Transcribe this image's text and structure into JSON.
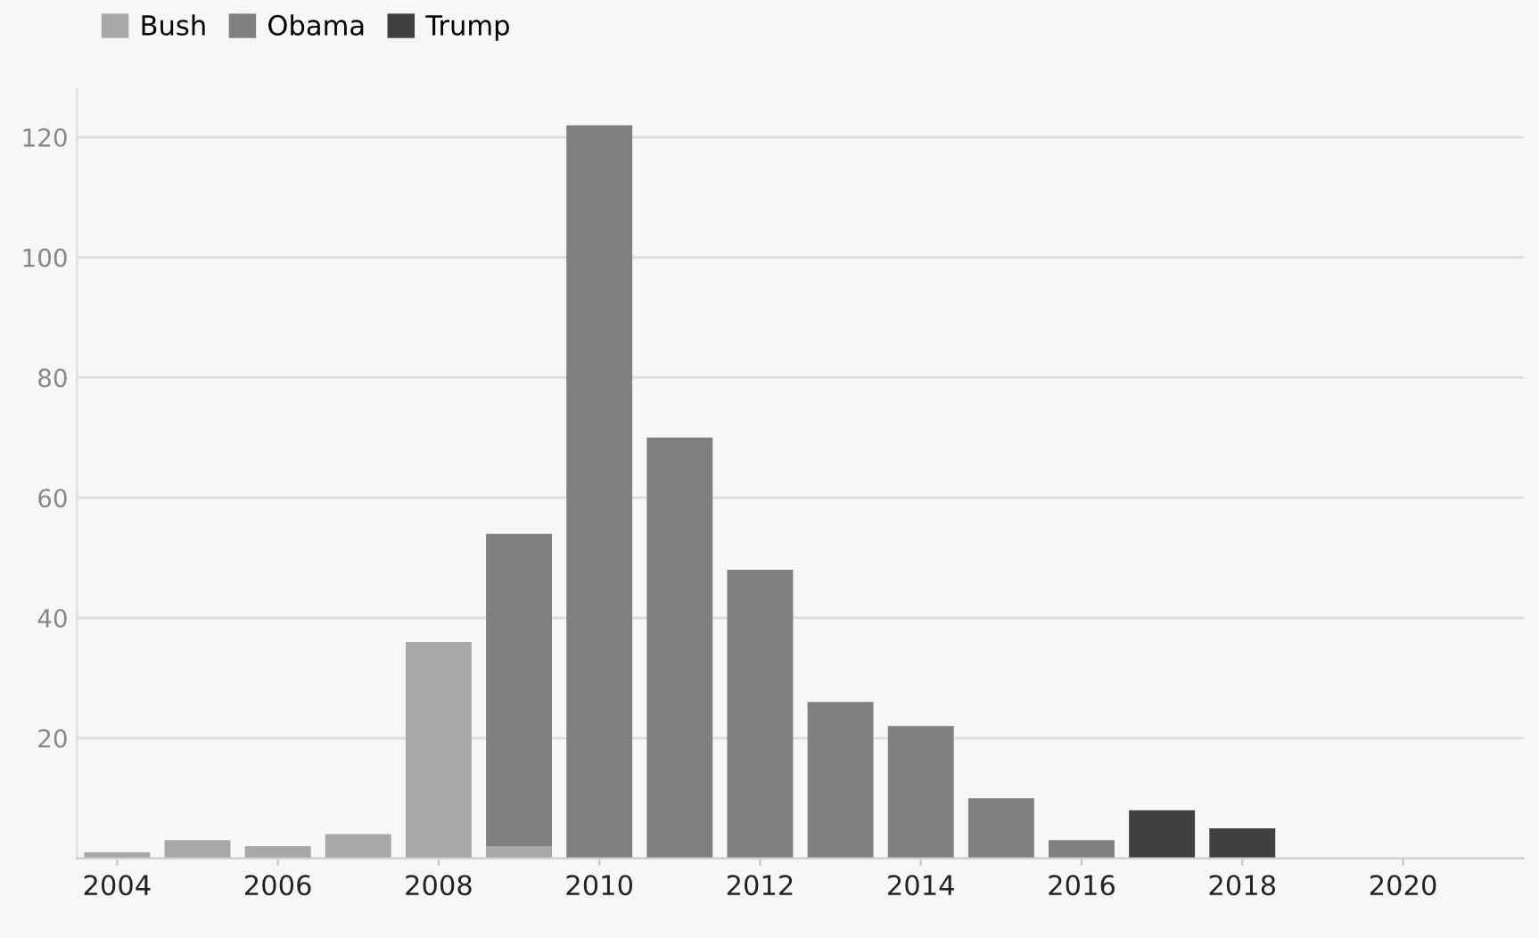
{
  "chart_data": {
    "type": "bar",
    "stacked": true,
    "categories": [
      "2004",
      null,
      "2006",
      null,
      "2008",
      null,
      "2010",
      null,
      "2012",
      null,
      "2014",
      null,
      "2016",
      null,
      "2018",
      null,
      "2020",
      null
    ],
    "series": [
      {
        "name": "Bush",
        "color": "#a8a8a8",
        "values": [
          1,
          3,
          2,
          4,
          36,
          2,
          null,
          null,
          null,
          null,
          null,
          null,
          null,
          null,
          null,
          null,
          null,
          null
        ]
      },
      {
        "name": "Obama",
        "color": "#808080",
        "values": [
          null,
          null,
          null,
          null,
          null,
          52,
          122,
          70,
          48,
          26,
          22,
          10,
          3,
          null,
          null,
          null,
          null,
          null
        ]
      },
      {
        "name": "Trump",
        "color": "#404040",
        "values": [
          null,
          null,
          null,
          null,
          null,
          null,
          null,
          null,
          null,
          null,
          null,
          null,
          null,
          8,
          5,
          null,
          null,
          null
        ]
      }
    ],
    "ylim": [
      0,
      128
    ],
    "yticks": [
      20,
      40,
      60,
      80,
      100,
      120
    ],
    "grid": "y",
    "legend": "top left"
  }
}
